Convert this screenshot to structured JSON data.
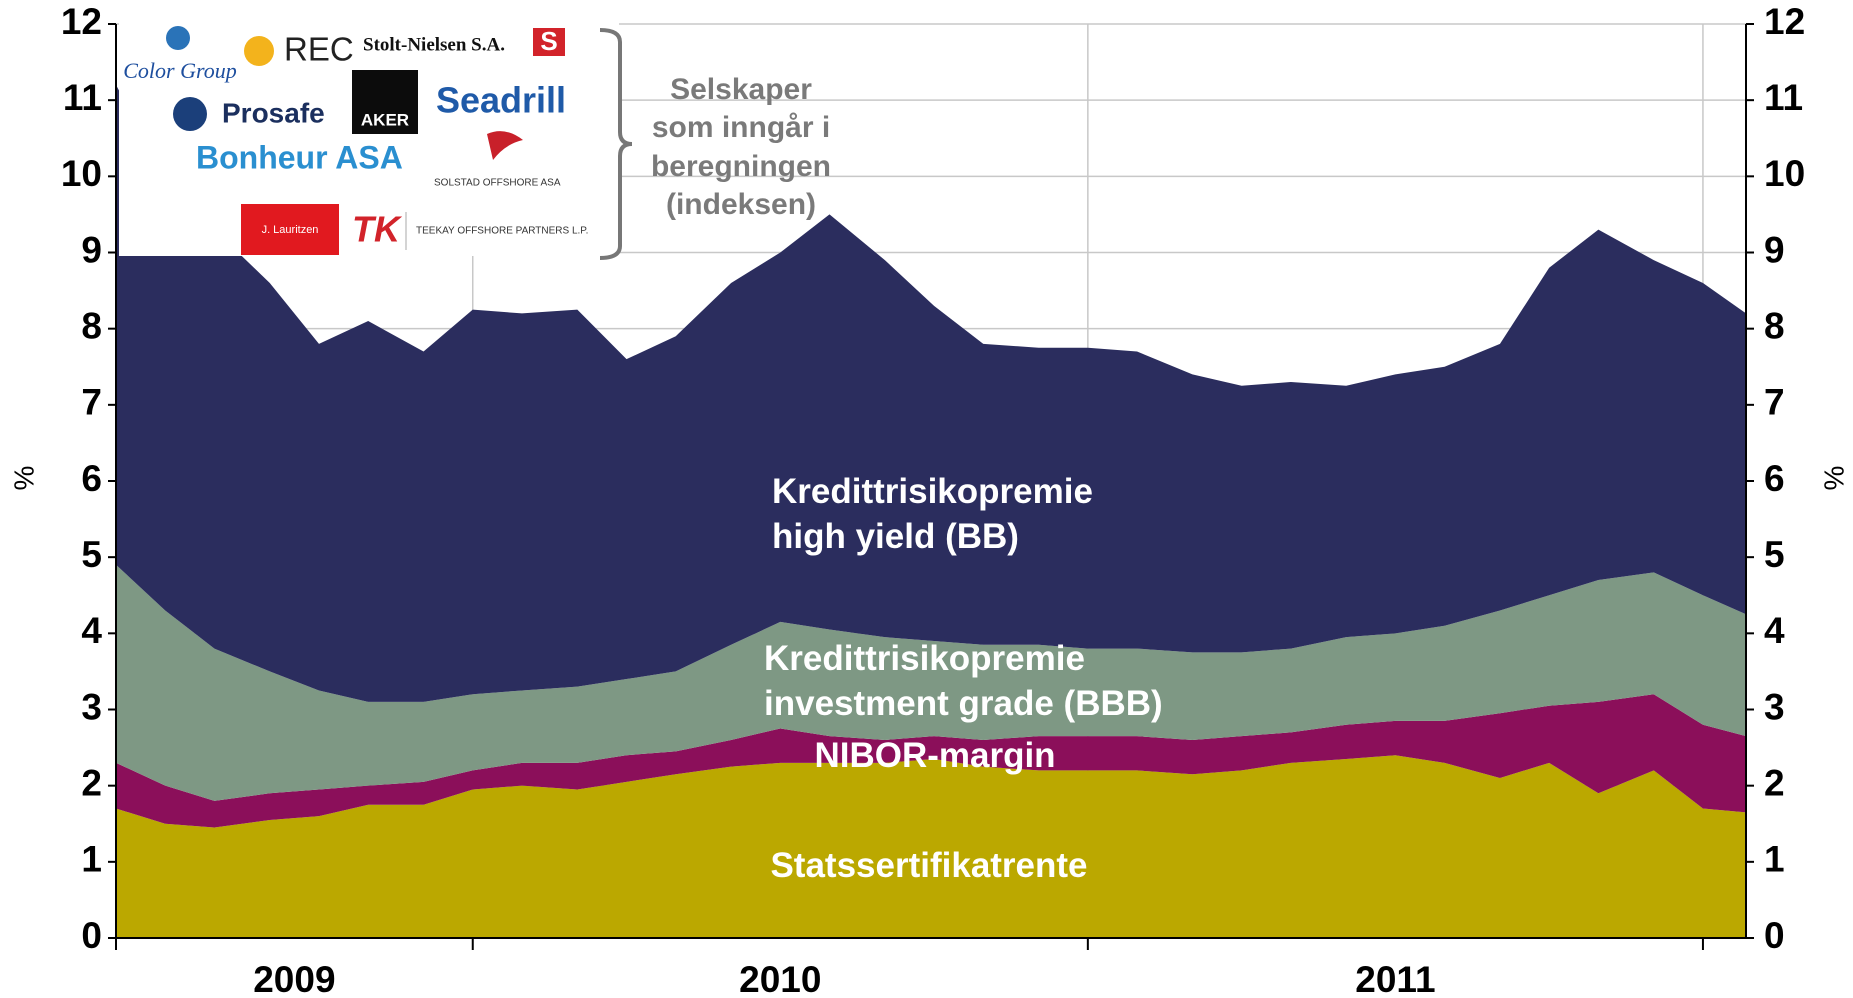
{
  "chart_data": {
    "type": "stacked_area",
    "ylabel": "%",
    "y2label": "%",
    "x": [
      2008.92,
      2009.0,
      2009.08,
      2009.17,
      2009.25,
      2009.33,
      2009.42,
      2009.5,
      2009.58,
      2009.67,
      2009.75,
      2009.83,
      2009.92,
      2010.0,
      2010.08,
      2010.17,
      2010.25,
      2010.33,
      2010.42,
      2010.5,
      2010.58,
      2010.67,
      2010.75,
      2010.83,
      2010.92,
      2011.0,
      2011.08,
      2011.17,
      2011.25,
      2011.33,
      2011.42,
      2011.5,
      2011.57
    ],
    "xlim": [
      2008.92,
      2011.57
    ],
    "xticks": [
      {
        "value": 2009.21,
        "label": "2009"
      },
      {
        "value": 2010.0,
        "label": "2010"
      },
      {
        "value": 2011.0,
        "label": "2011"
      }
    ],
    "xgrid": [
      2009.5,
      2010.5,
      2011.5
    ],
    "ylim": [
      0,
      12
    ],
    "yticks": [
      0,
      1,
      2,
      3,
      4,
      5,
      6,
      7,
      8,
      9,
      10,
      11,
      12
    ],
    "y2lim": [
      0,
      12
    ],
    "y2ticks": [
      0,
      1,
      2,
      3,
      4,
      5,
      6,
      7,
      8,
      9,
      10,
      11,
      12
    ],
    "grid": true,
    "series": [
      {
        "name": "Statssertifikatrente",
        "color": "#bba800",
        "values": [
          1.7,
          1.5,
          1.45,
          1.55,
          1.6,
          1.75,
          1.75,
          1.95,
          2.0,
          1.95,
          2.05,
          2.15,
          2.25,
          2.3,
          2.3,
          2.3,
          2.35,
          2.25,
          2.2,
          2.2,
          2.2,
          2.15,
          2.2,
          2.3,
          2.35,
          2.4,
          2.3,
          2.1,
          2.3,
          1.9,
          2.2,
          1.7,
          1.65
        ]
      },
      {
        "name": "NIBOR-margin",
        "color": "#8b0f5a",
        "values": [
          0.6,
          0.5,
          0.35,
          0.35,
          0.35,
          0.25,
          0.3,
          0.25,
          0.3,
          0.35,
          0.35,
          0.3,
          0.35,
          0.45,
          0.35,
          0.3,
          0.3,
          0.35,
          0.45,
          0.45,
          0.45,
          0.45,
          0.45,
          0.4,
          0.45,
          0.45,
          0.55,
          0.85,
          0.75,
          1.2,
          1.0,
          1.1,
          1.0
        ]
      },
      {
        "name": "Kredittrisikopremie investment grade (BBB)",
        "color": "#7e9884",
        "values": [
          2.6,
          2.3,
          2.0,
          1.6,
          1.3,
          1.1,
          1.05,
          1.0,
          0.95,
          1.0,
          1.0,
          1.05,
          1.25,
          1.4,
          1.4,
          1.35,
          1.25,
          1.25,
          1.2,
          1.15,
          1.15,
          1.15,
          1.1,
          1.1,
          1.15,
          1.15,
          1.25,
          1.35,
          1.45,
          1.6,
          1.6,
          1.7,
          1.6
        ]
      },
      {
        "name": "Kredittrisikopremie high yield (BB)",
        "color": "#2b2d5e",
        "values": [
          6.3,
          5.7,
          5.5,
          5.1,
          4.55,
          5.0,
          4.6,
          5.05,
          4.95,
          4.95,
          4.2,
          4.4,
          4.75,
          4.85,
          5.45,
          4.95,
          4.4,
          3.95,
          3.9,
          3.95,
          3.9,
          3.65,
          3.5,
          3.5,
          3.3,
          3.4,
          3.4,
          3.5,
          4.3,
          4.6,
          4.1,
          4.1,
          3.95
        ]
      }
    ],
    "annotation": [
      "Selskaper",
      "som inngår i",
      "beregningen",
      "(indeksen)"
    ],
    "logos": [
      "Color Group",
      "REC",
      "Stolt-Nielsen S.A.",
      "S",
      "Prosafe",
      "AKER",
      "Seadrill",
      "Bonheur ASA",
      "SOLSTAD OFFSHORE ASA",
      "J. Lauritzen",
      "TK",
      "TEEKAY OFFSHORE PARTNERS L.P."
    ]
  }
}
